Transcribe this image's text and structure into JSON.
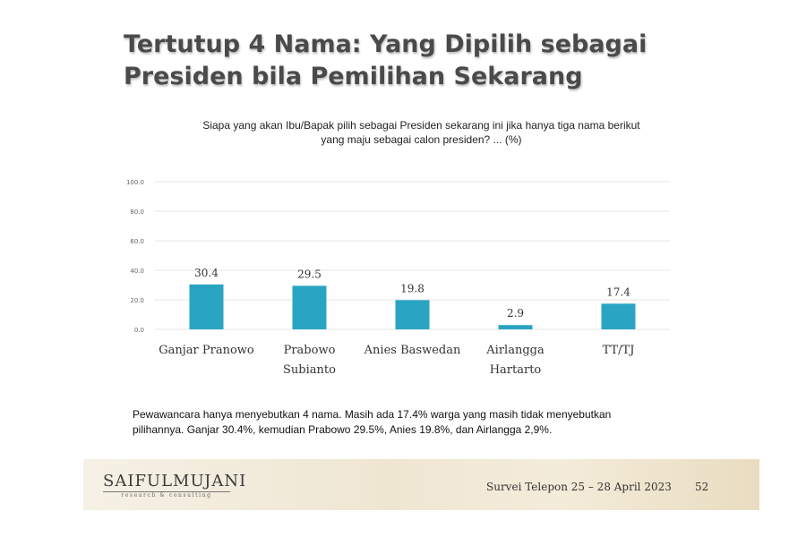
{
  "slide": {
    "title_line1": "Tertutup 4 Nama: Yang Dipilih sebagai",
    "title_line2": "Presiden bila Pemilihan Sekarang",
    "question_line1": "Siapa yang akan Ibu/Bapak pilih sebagai Presiden sekarang ini jika hanya tiga nama berikut",
    "question_line2": "yang maju sebagai calon presiden? ... (%)",
    "note_line1": "Pewawancara hanya menyebutkan 4 nama. Masih ada 17.4% warga yang masih tidak menyebutkan",
    "note_line2": "pilihannya. Ganjar 30.4%, kemudian Prabowo 29.5%, Anies 19.8%, dan Airlangga 2,9%."
  },
  "footer": {
    "logo_text": "SAIFULMUJANI",
    "logo_subtext": "research & consulting",
    "survey_text": "Survei Telepon 25 – 28 April 2023",
    "page_number": "52"
  },
  "chart_data": {
    "type": "bar",
    "categories": [
      [
        "Ganjar Pranowo"
      ],
      [
        "Prabowo",
        "Subianto"
      ],
      [
        "Anies Baswedan"
      ],
      [
        "Airlangga",
        "Hartarto"
      ],
      [
        "TT/TJ"
      ]
    ],
    "values": [
      30.4,
      29.5,
      19.8,
      2.9,
      17.4
    ],
    "value_labels": [
      "30.4",
      "29.5",
      "19.8",
      "2.9",
      "17.4"
    ],
    "yticks": [
      "100.0",
      "80.0",
      "60.0",
      "40.0",
      "20.0",
      "0.0"
    ],
    "ytick_values": [
      100,
      80,
      60,
      40,
      20,
      0
    ],
    "ylim": [
      0,
      100
    ],
    "grid": true,
    "bar_color": "#2aa4c3",
    "grid_color": "#e6e6e6",
    "title": "",
    "xlabel": "",
    "ylabel": ""
  }
}
